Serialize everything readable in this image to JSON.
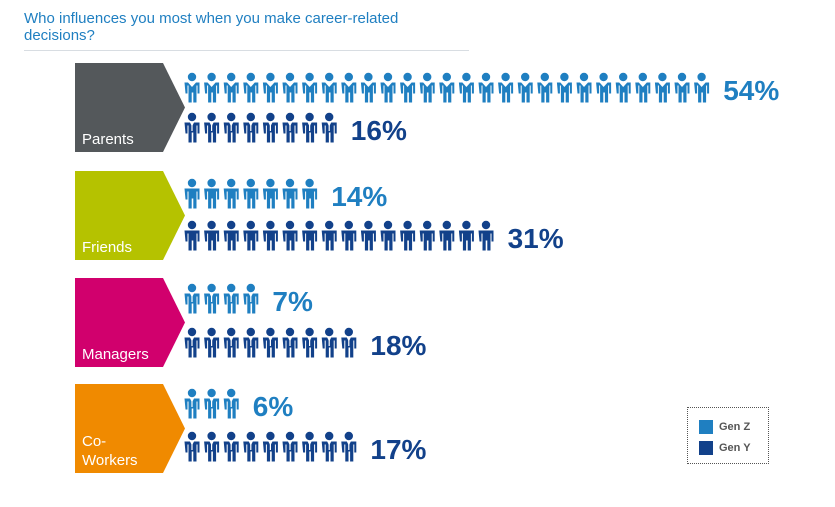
{
  "title": "Who influences you most when you make career-related decisions?",
  "colors": {
    "gen_z": "#1f7fc1",
    "gen_y": "#12418a"
  },
  "legend": {
    "gen_z": "Gen Z",
    "gen_y": "Gen Y"
  },
  "chart_data": {
    "type": "pictograph-bar",
    "title": "Who influences you most when you make career-related decisions?",
    "categories": [
      {
        "label": "Parents",
        "lines": [
          "Parents"
        ],
        "color": "#54585b",
        "icon": "mixed-person-icon"
      },
      {
        "label": "Friends",
        "lines": [
          "Friends"
        ],
        "color": "#b5c200",
        "icon": "casual-person-icon"
      },
      {
        "label": "Managers",
        "lines": [
          "Managers"
        ],
        "color": "#d1006d",
        "icon": "business-person-icon"
      },
      {
        "label": "Co-Workers",
        "lines": [
          "Co-",
          "Workers"
        ],
        "color": "#f08a00",
        "icon": "business-person-icon"
      }
    ],
    "series": [
      {
        "name": "Gen Z",
        "values": [
          54,
          14,
          7,
          6
        ],
        "labels": [
          "54%",
          "14%",
          "7%",
          "6%"
        ]
      },
      {
        "name": "Gen Y",
        "values": [
          16,
          31,
          18,
          17
        ],
        "labels": [
          "16%",
          "31%",
          "18%",
          "17%"
        ]
      }
    ],
    "unit": "%",
    "legend_position": "bottom-right"
  }
}
